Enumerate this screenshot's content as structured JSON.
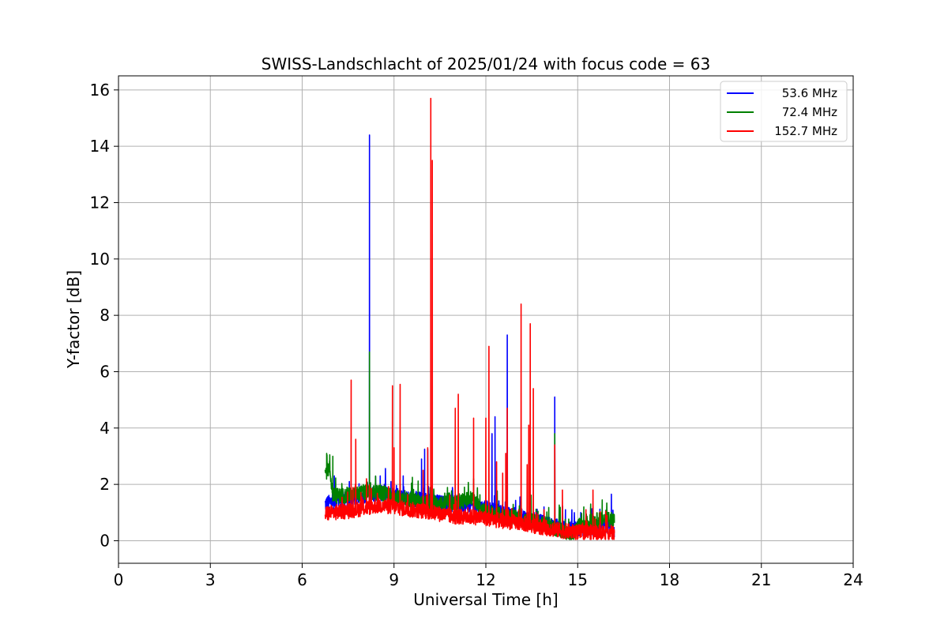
{
  "chart_data": {
    "type": "line",
    "title": "SWISS-Landschlacht of 2025/01/24 with focus code = 63",
    "xlabel": "Universal Time [h]",
    "ylabel": "Y-factor [dB]",
    "xlim": [
      0,
      24
    ],
    "ylim": [
      -0.8,
      16.5
    ],
    "xticks": [
      0,
      3,
      6,
      9,
      12,
      15,
      18,
      21,
      24
    ],
    "yticks": [
      0,
      2,
      4,
      6,
      8,
      10,
      12,
      14,
      16
    ],
    "grid": true,
    "legend_position": "top-right",
    "series": [
      {
        "name": "53.6 MHz",
        "color": "#0000ff",
        "baseline": [
          [
            6.75,
            1.3
          ],
          [
            7.0,
            1.4
          ],
          [
            7.5,
            1.5
          ],
          [
            8.0,
            1.6
          ],
          [
            8.5,
            1.7
          ],
          [
            9.0,
            1.6
          ],
          [
            9.5,
            1.5
          ],
          [
            10.0,
            1.45
          ],
          [
            10.5,
            1.35
          ],
          [
            11.0,
            1.3
          ],
          [
            11.5,
            1.25
          ],
          [
            12.0,
            1.15
          ],
          [
            12.5,
            1.0
          ],
          [
            13.0,
            0.9
          ],
          [
            13.5,
            0.75
          ],
          [
            14.0,
            0.6
          ],
          [
            14.5,
            0.45
          ],
          [
            15.0,
            0.4
          ],
          [
            15.5,
            0.45
          ],
          [
            16.0,
            0.5
          ],
          [
            16.2,
            0.4
          ]
        ],
        "spikes": [
          [
            7.05,
            2.3
          ],
          [
            8.2,
            14.4
          ],
          [
            8.55,
            2.3
          ],
          [
            8.9,
            2.1
          ],
          [
            9.3,
            2.3
          ],
          [
            9.9,
            2.9
          ],
          [
            10.0,
            3.25
          ],
          [
            10.1,
            3.25
          ],
          [
            12.2,
            3.8
          ],
          [
            12.3,
            4.4
          ],
          [
            12.7,
            7.3
          ],
          [
            13.1,
            1.2
          ],
          [
            13.9,
            1.2
          ],
          [
            14.25,
            5.1
          ],
          [
            14.6,
            1.1
          ],
          [
            15.1,
            1.0
          ],
          [
            16.1,
            1.65
          ]
        ]
      },
      {
        "name": "72.4 MHz",
        "color": "#008000",
        "baseline": [
          [
            6.75,
            2.4
          ],
          [
            6.9,
            2.6
          ],
          [
            7.0,
            1.6
          ],
          [
            7.5,
            1.6
          ],
          [
            8.0,
            1.7
          ],
          [
            8.5,
            1.7
          ],
          [
            9.0,
            1.55
          ],
          [
            9.5,
            1.45
          ],
          [
            10.0,
            1.35
          ],
          [
            10.5,
            1.3
          ],
          [
            11.0,
            1.35
          ],
          [
            11.5,
            1.5
          ],
          [
            12.0,
            1.05
          ],
          [
            12.5,
            0.9
          ],
          [
            13.0,
            0.8
          ],
          [
            13.5,
            0.7
          ],
          [
            14.0,
            0.55
          ],
          [
            14.5,
            0.35
          ],
          [
            14.8,
            0.15
          ],
          [
            15.0,
            0.5
          ],
          [
            15.5,
            0.7
          ],
          [
            16.0,
            0.8
          ],
          [
            16.2,
            0.7
          ]
        ],
        "spikes": [
          [
            6.8,
            3.1
          ],
          [
            6.9,
            3.05
          ],
          [
            7.0,
            3.0
          ],
          [
            8.2,
            6.7
          ],
          [
            8.55,
            2.0
          ],
          [
            9.2,
            2.0
          ],
          [
            9.6,
            2.25
          ],
          [
            11.3,
            1.9
          ],
          [
            11.6,
            2.2
          ],
          [
            12.7,
            1.6
          ],
          [
            14.25,
            3.8
          ],
          [
            15.2,
            1.2
          ],
          [
            15.8,
            1.45
          ],
          [
            16.1,
            1.0
          ]
        ]
      },
      {
        "name": "152.7 MHz",
        "color": "#ff0000",
        "baseline": [
          [
            6.75,
            0.95
          ],
          [
            7.0,
            1.0
          ],
          [
            7.5,
            1.05
          ],
          [
            8.0,
            1.15
          ],
          [
            8.5,
            1.25
          ],
          [
            9.0,
            1.2
          ],
          [
            9.5,
            1.1
          ],
          [
            10.0,
            1.05
          ],
          [
            10.5,
            0.95
          ],
          [
            11.0,
            0.85
          ],
          [
            11.5,
            0.85
          ],
          [
            12.0,
            0.8
          ],
          [
            12.5,
            0.7
          ],
          [
            13.0,
            0.65
          ],
          [
            13.5,
            0.55
          ],
          [
            14.0,
            0.45
          ],
          [
            14.5,
            0.35
          ],
          [
            15.0,
            0.3
          ],
          [
            15.5,
            0.3
          ],
          [
            16.0,
            0.3
          ],
          [
            16.2,
            0.25
          ]
        ],
        "spikes": [
          [
            7.6,
            5.7
          ],
          [
            7.75,
            3.6
          ],
          [
            8.1,
            2.2
          ],
          [
            8.95,
            5.5
          ],
          [
            9.0,
            3.3
          ],
          [
            9.2,
            5.55
          ],
          [
            9.95,
            2.5
          ],
          [
            10.1,
            3.3
          ],
          [
            10.2,
            15.7
          ],
          [
            10.25,
            13.5
          ],
          [
            11.0,
            4.7
          ],
          [
            11.1,
            5.2
          ],
          [
            11.6,
            4.35
          ],
          [
            12.0,
            4.35
          ],
          [
            12.1,
            6.9
          ],
          [
            12.35,
            2.8
          ],
          [
            12.55,
            2.4
          ],
          [
            12.65,
            3.1
          ],
          [
            12.7,
            4.7
          ],
          [
            13.15,
            8.4
          ],
          [
            13.35,
            2.7
          ],
          [
            13.4,
            4.1
          ],
          [
            13.45,
            7.7
          ],
          [
            13.55,
            5.4
          ],
          [
            13.9,
            1.1
          ],
          [
            14.25,
            3.4
          ],
          [
            14.5,
            1.8
          ],
          [
            15.5,
            1.8
          ]
        ]
      }
    ]
  }
}
